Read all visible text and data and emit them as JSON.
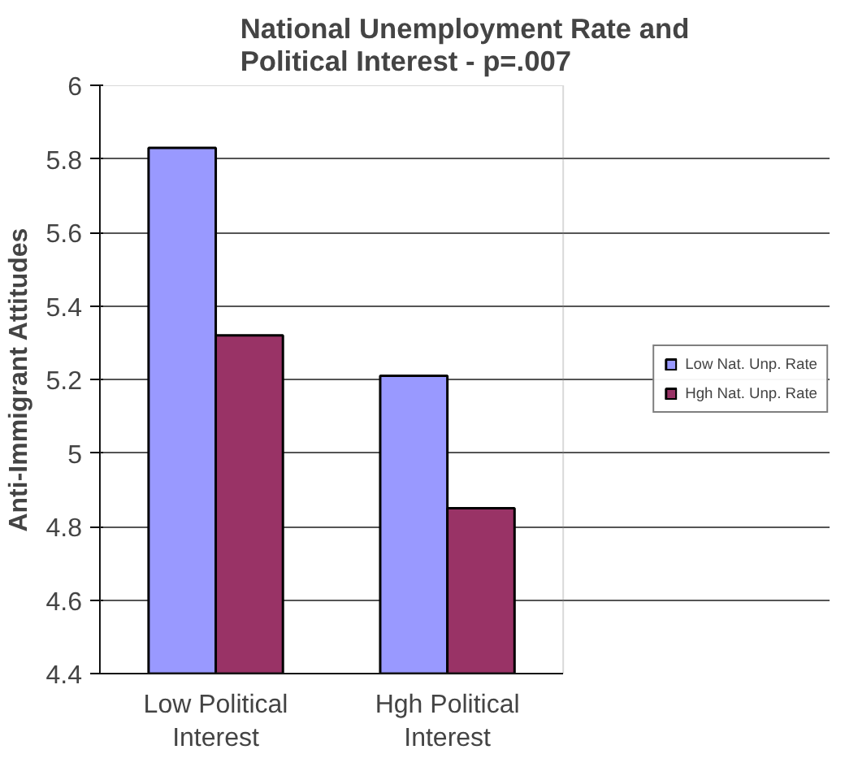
{
  "chart_data": {
    "type": "bar",
    "title": "National Unemployment Rate and Political Interest - p=.007",
    "ylabel": "Anti-Immigrant Attitudes",
    "categories": [
      "Low Political Interest",
      "Hgh Political Interest"
    ],
    "series": [
      {
        "name": "Low Nat. Unp. Rate",
        "color": "#9999ff",
        "values": [
          5.83,
          5.21
        ]
      },
      {
        "name": "Hgh Nat. Unp. Rate",
        "color": "#993366",
        "values": [
          5.32,
          4.85
        ]
      }
    ],
    "ylim": [
      4.4,
      6
    ],
    "yticks": [
      4.4,
      4.6,
      4.8,
      5,
      5.2,
      5.4,
      5.6,
      5.8,
      6
    ],
    "grid": "y",
    "legend": "right"
  }
}
